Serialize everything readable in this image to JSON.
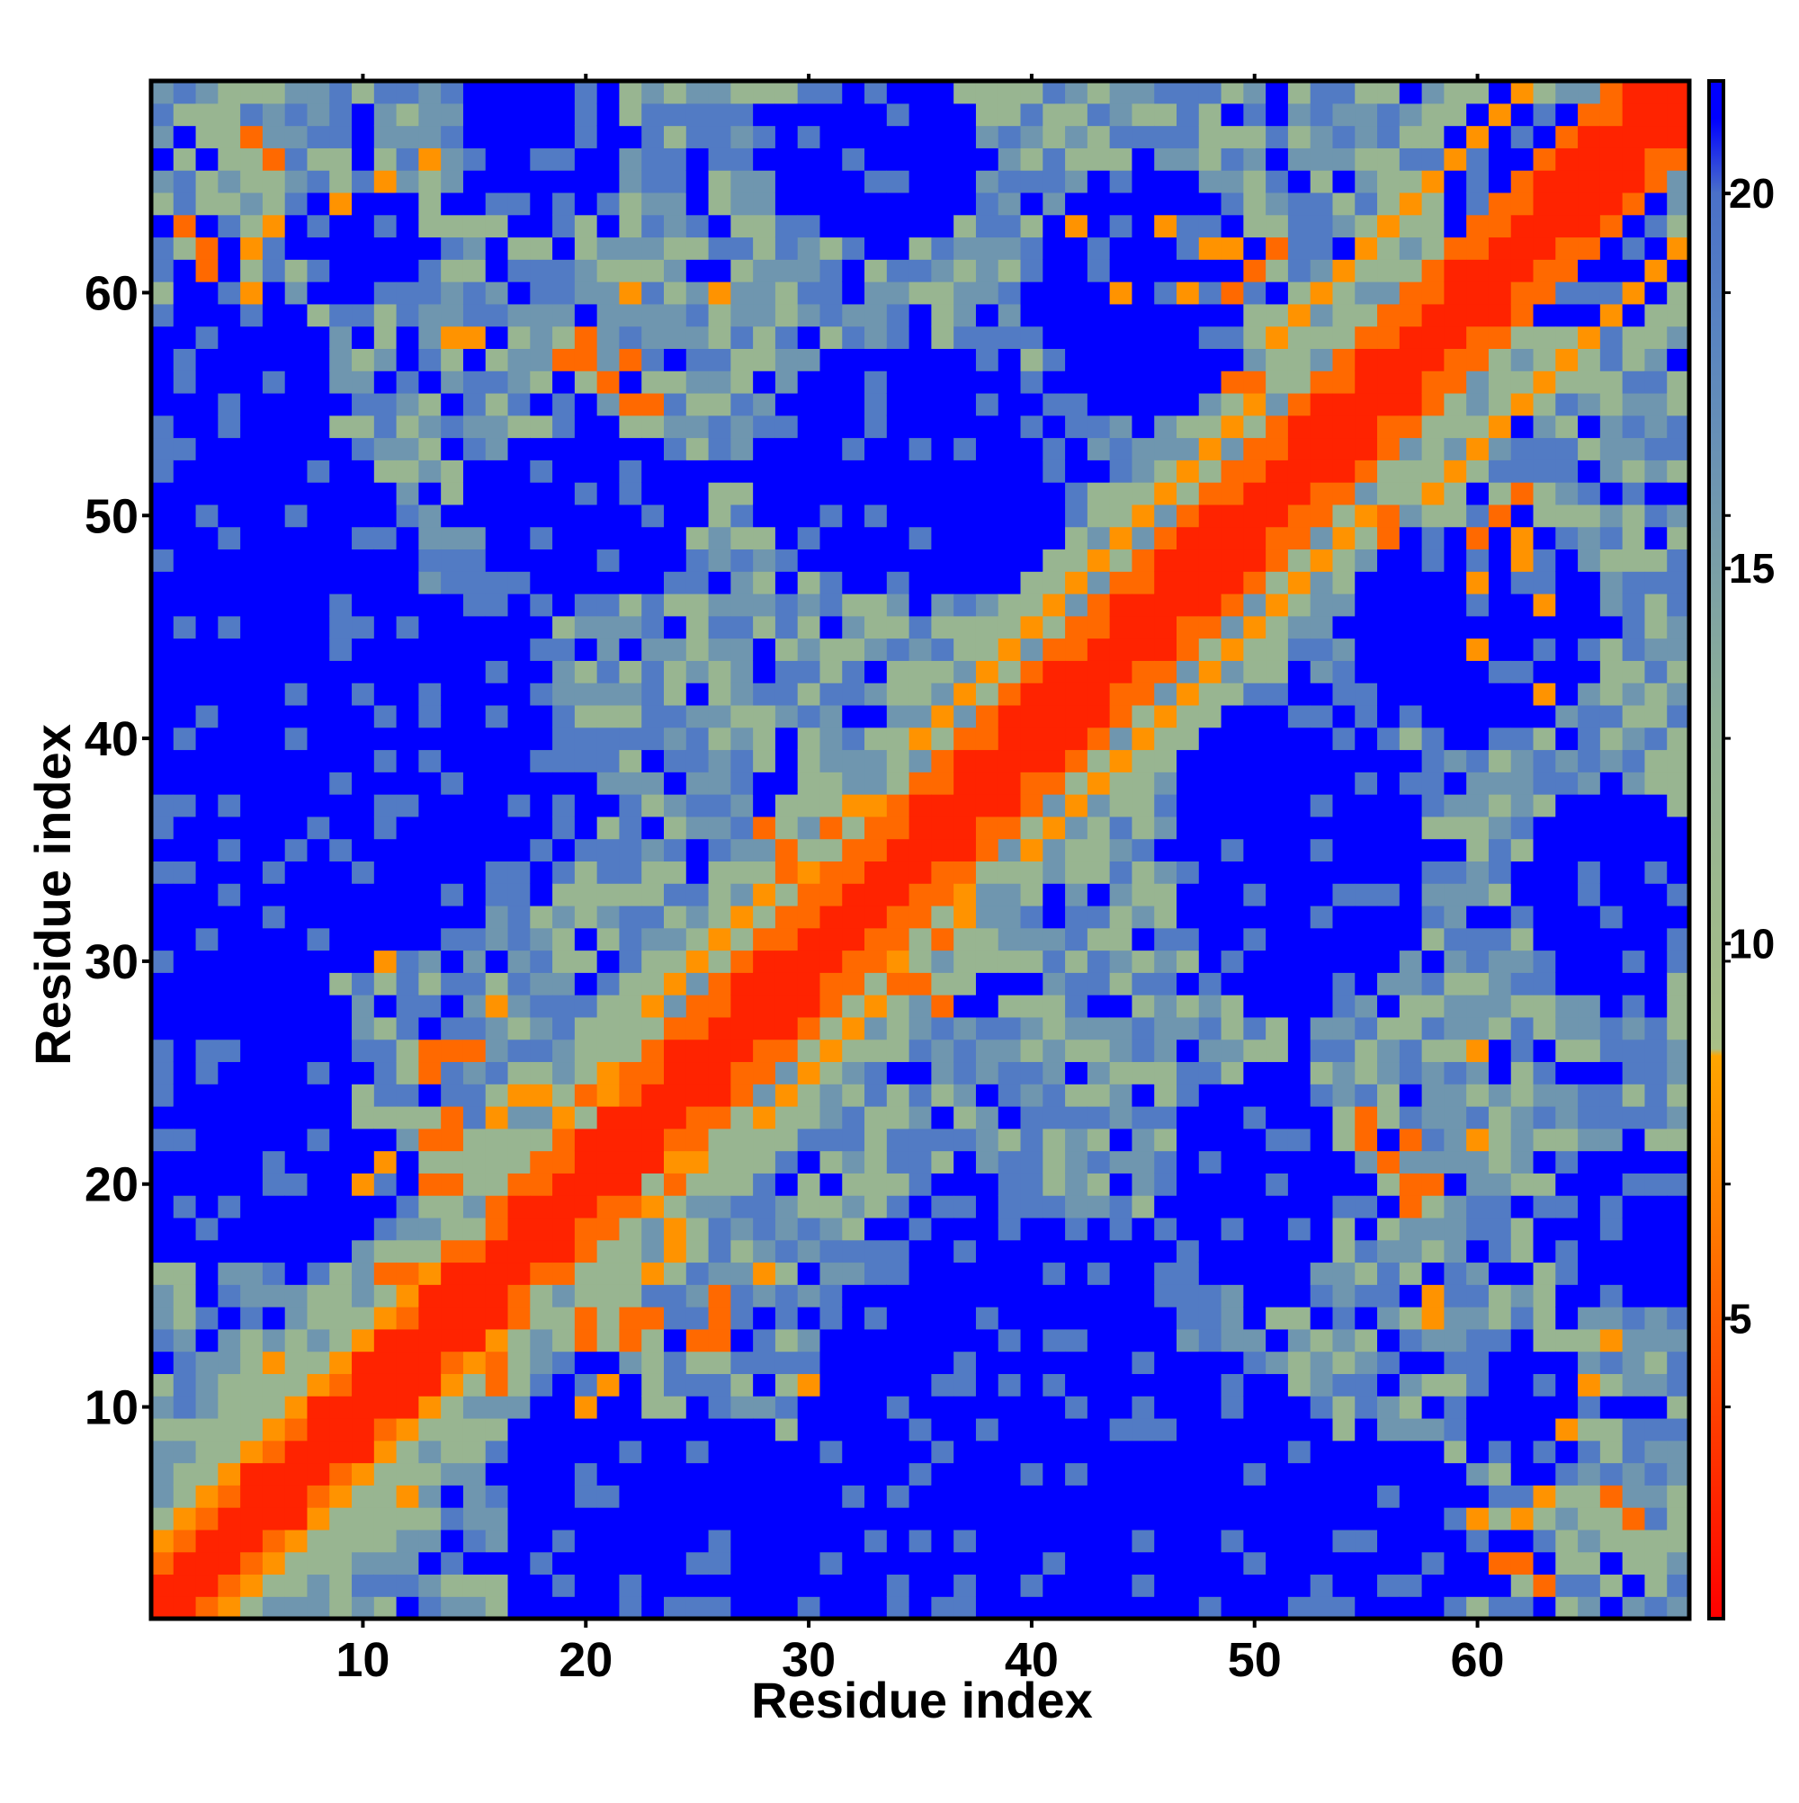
{
  "chart_data": {
    "type": "heatmap",
    "title": "",
    "xlabel": "Residue index",
    "ylabel": "Residue index",
    "n": 69,
    "x_range": [
      1,
      69
    ],
    "y_range": [
      1,
      69
    ],
    "x_ticks": [
      10,
      20,
      30,
      40,
      50,
      60
    ],
    "y_ticks": [
      10,
      20,
      30,
      40,
      50,
      60
    ],
    "colorbar": {
      "range": [
        1,
        21.5
      ],
      "ticks": [
        5,
        10,
        15,
        20
      ],
      "color_stops": [
        {
          "value": 1,
          "color": "#ff0000"
        },
        {
          "value": 6.5,
          "color": "#ff8000"
        },
        {
          "value": 8.5,
          "color": "#ffa500"
        },
        {
          "value": 8.6,
          "color": "#a9bf86"
        },
        {
          "value": 13,
          "color": "#8fb096"
        },
        {
          "value": 18,
          "color": "#5a85c0"
        },
        {
          "value": 20,
          "color": "#4a70c8"
        },
        {
          "value": 21,
          "color": "#0000ff"
        }
      ]
    },
    "cell_value_levels": {
      "diagonal_band": 2.5,
      "near_contact": 5.5,
      "contact_orange": 7.5,
      "mid_range": 11.5,
      "far_range": 16,
      "distant": 19,
      "beyond_cutoff": 21.5
    },
    "near_contact_pairs": [
      [
        3,
        5
      ],
      [
        4,
        6
      ],
      [
        5,
        7
      ],
      [
        6,
        8
      ],
      [
        7,
        9
      ],
      [
        8,
        10
      ],
      [
        9,
        11
      ],
      [
        10,
        12
      ],
      [
        11,
        13
      ],
      [
        12,
        14
      ],
      [
        11,
        16
      ],
      [
        12,
        16
      ],
      [
        13,
        15
      ],
      [
        14,
        17
      ],
      [
        13,
        20
      ],
      [
        14,
        20
      ],
      [
        13,
        22
      ],
      [
        14,
        22
      ],
      [
        14,
        23
      ],
      [
        13,
        25
      ],
      [
        13,
        26
      ],
      [
        14,
        26
      ],
      [
        15,
        26
      ],
      [
        16,
        19
      ],
      [
        17,
        20
      ],
      [
        18,
        21
      ],
      [
        19,
        22
      ],
      [
        20,
        24
      ],
      [
        22,
        25
      ],
      [
        23,
        26
      ],
      [
        24,
        27
      ],
      [
        25,
        28
      ],
      [
        26,
        29
      ],
      [
        27,
        30
      ],
      [
        28,
        31
      ],
      [
        29,
        32
      ],
      [
        30,
        33
      ],
      [
        31,
        34
      ],
      [
        32,
        35
      ],
      [
        33,
        36
      ],
      [
        34,
        37
      ],
      [
        35,
        38
      ],
      [
        36,
        39
      ],
      [
        37,
        40
      ],
      [
        38,
        41
      ],
      [
        39,
        42
      ],
      [
        40,
        43
      ],
      [
        41,
        44
      ],
      [
        42,
        45
      ],
      [
        43,
        46
      ],
      [
        44,
        47
      ],
      [
        45,
        48
      ],
      [
        46,
        49
      ],
      [
        47,
        50
      ],
      [
        48,
        51
      ],
      [
        49,
        52
      ],
      [
        50,
        53
      ],
      [
        51,
        54
      ],
      [
        52,
        55
      ],
      [
        53,
        56
      ],
      [
        54,
        57
      ],
      [
        55,
        58
      ],
      [
        56,
        59
      ],
      [
        57,
        60
      ],
      [
        58,
        61
      ],
      [
        59,
        62
      ],
      [
        60,
        63
      ],
      [
        61,
        64
      ],
      [
        62,
        65
      ],
      [
        63,
        66
      ],
      [
        64,
        67
      ],
      [
        65,
        68
      ],
      [
        66,
        69
      ],
      [
        29,
        34
      ],
      [
        29,
        35
      ],
      [
        28,
        36
      ],
      [
        31,
        36
      ],
      [
        33,
        36
      ],
      [
        34,
        36
      ],
      [
        19,
        57
      ],
      [
        20,
        57
      ],
      [
        21,
        56
      ],
      [
        22,
        55
      ],
      [
        23,
        55
      ],
      [
        49,
        56
      ],
      [
        50,
        56
      ],
      [
        51,
        53
      ],
      [
        50,
        52
      ],
      [
        51,
        62
      ],
      [
        50,
        61
      ],
      [
        49,
        60
      ],
      [
        56,
        21
      ],
      [
        57,
        22
      ],
      [
        57,
        20
      ],
      [
        58,
        20
      ],
      [
        61,
        3
      ],
      [
        62,
        3
      ],
      [
        63,
        2
      ],
      [
        66,
        6
      ],
      [
        67,
        5
      ]
    ],
    "contact_orange_pairs": [
      [
        2,
        4
      ],
      [
        3,
        6
      ],
      [
        4,
        7
      ],
      [
        5,
        8
      ],
      [
        6,
        9
      ],
      [
        7,
        10
      ],
      [
        8,
        11
      ],
      [
        9,
        12
      ],
      [
        10,
        13
      ],
      [
        11,
        14
      ],
      [
        12,
        15
      ],
      [
        13,
        16
      ],
      [
        15,
        17
      ],
      [
        16,
        18
      ],
      [
        17,
        19
      ],
      [
        18,
        20
      ],
      [
        10,
        20
      ],
      [
        11,
        21
      ],
      [
        21,
        25
      ],
      [
        22,
        25
      ],
      [
        19,
        23
      ],
      [
        20,
        24
      ],
      [
        23,
        28
      ],
      [
        24,
        29
      ],
      [
        25,
        30
      ],
      [
        26,
        31
      ],
      [
        27,
        32
      ],
      [
        28,
        33
      ],
      [
        29,
        31
      ],
      [
        30,
        34
      ],
      [
        32,
        37
      ],
      [
        33,
        37
      ],
      [
        35,
        40
      ],
      [
        36,
        41
      ],
      [
        37,
        42
      ],
      [
        38,
        43
      ],
      [
        39,
        44
      ],
      [
        40,
        45
      ],
      [
        41,
        46
      ],
      [
        42,
        47
      ],
      [
        43,
        48
      ],
      [
        44,
        49
      ],
      [
        45,
        50
      ],
      [
        46,
        51
      ],
      [
        47,
        52
      ],
      [
        48,
        53
      ],
      [
        49,
        54
      ],
      [
        50,
        55
      ],
      [
        51,
        58
      ],
      [
        52,
        59
      ],
      [
        53,
        60
      ],
      [
        54,
        61
      ],
      [
        55,
        62
      ],
      [
        56,
        63
      ],
      [
        57,
        64
      ],
      [
        58,
        65
      ],
      [
        59,
        66
      ],
      [
        60,
        67
      ],
      [
        61,
        68
      ],
      [
        62,
        69
      ],
      [
        16,
        23
      ],
      [
        17,
        24
      ],
      [
        18,
        24
      ],
      [
        22,
        60
      ],
      [
        26,
        60
      ],
      [
        42,
        63
      ],
      [
        44,
        60
      ],
      [
        46,
        63
      ],
      [
        47,
        60
      ],
      [
        48,
        62
      ],
      [
        49,
        62
      ],
      [
        58,
        14
      ],
      [
        58,
        15
      ],
      [
        60,
        5
      ],
      [
        62,
        5
      ],
      [
        63,
        6
      ],
      [
        64,
        9
      ],
      [
        65,
        11
      ],
      [
        66,
        13
      ],
      [
        12,
        6
      ],
      [
        28,
        16
      ],
      [
        30,
        11
      ]
    ]
  }
}
